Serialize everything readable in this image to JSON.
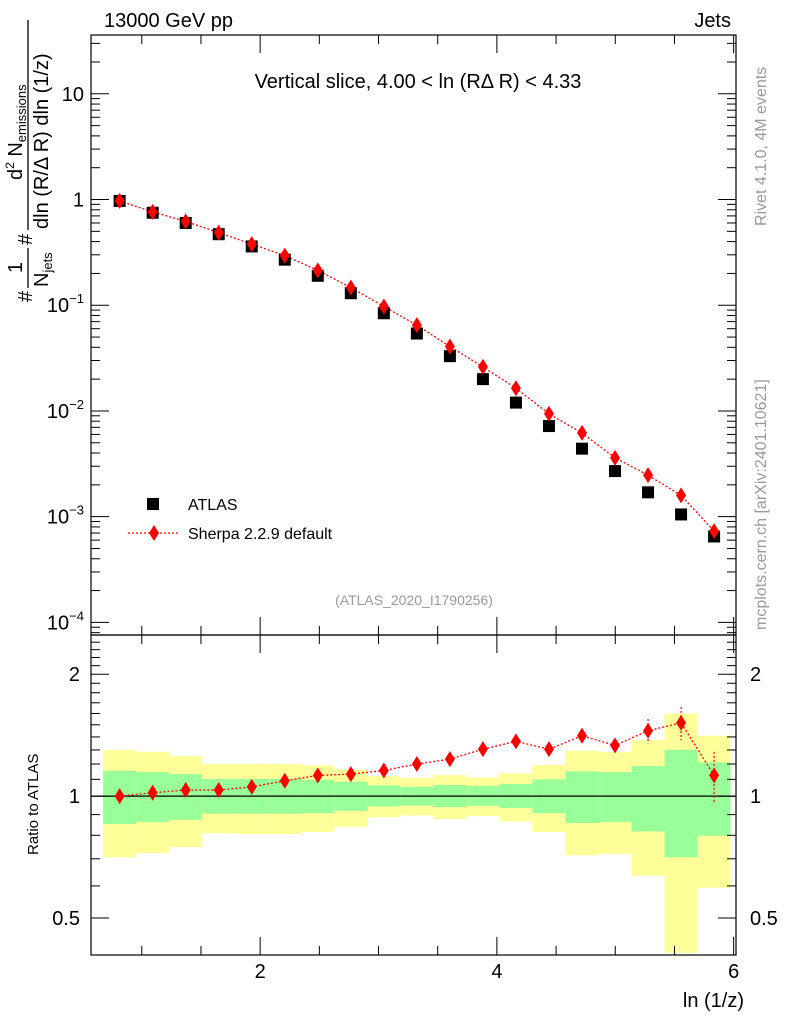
{
  "header": {
    "energy_label": "13000 GeV pp",
    "category_label": "Jets"
  },
  "side": {
    "rivet_label": "Rivet 4.1.0,  4M events",
    "mcplots_label": "mcplots.cern.ch [arXiv:2401.10621]"
  },
  "colors": {
    "data": "#000000",
    "mc": "#ff0000",
    "band_inner": "#99ff99",
    "band_outer": "#ffff99"
  },
  "chart_data": [
    {
      "type": "scatter",
      "panel": "main",
      "title": "Vertical slice, 4.00 < ln (RΔ R) < 4.33",
      "analysis_label": "(ATLAS_2020_I1790256)",
      "ylabel": {
        "f1_num": "1",
        "f1_den_hash": "#",
        "f1_den": "N",
        "f1_den_sub": "jets",
        "f2_num_d": "d",
        "f2_num_sup": "2",
        "f2_num_N": " N",
        "f2_num_sub": "emissions",
        "f2_den_hash": "#",
        "f2_den": "dln (R/Δ R) dln (1/z)",
        "hash": "#"
      },
      "yscale": "log",
      "ylim": [
        7.6e-05,
        36
      ],
      "xlim": [
        0.571,
        6.02
      ],
      "ytick_labels": [
        {
          "base": "10",
          "exp": "−4",
          "value": 0.0001
        },
        {
          "base": "10",
          "exp": "−3",
          "value": 0.001
        },
        {
          "base": "10",
          "exp": "−2",
          "value": 0.01
        },
        {
          "base": "10",
          "exp": "−1",
          "value": 0.1
        },
        {
          "base": "1",
          "exp": "",
          "value": 1
        },
        {
          "base": "10",
          "exp": "",
          "value": 10
        }
      ],
      "legend": {
        "placement": "bottom-left",
        "entries": [
          "ATLAS",
          "Sherpa 2.2.9 default"
        ]
      },
      "x": [
        0.813,
        1.092,
        1.371,
        1.65,
        1.929,
        2.208,
        2.487,
        2.766,
        3.045,
        3.324,
        3.603,
        3.882,
        4.161,
        4.44,
        4.719,
        4.998,
        5.277,
        5.556,
        5.835
      ],
      "series": [
        {
          "name": "ATLAS",
          "values": [
            0.97,
            0.75,
            0.6,
            0.47,
            0.36,
            0.27,
            0.19,
            0.13,
            0.084,
            0.054,
            0.033,
            0.02,
            0.012,
            0.0072,
            0.0044,
            0.0027,
            0.0017,
            0.00105,
            0.00065
          ]
        },
        {
          "name": "Sherpa 2.2.9 default",
          "values": [
            0.97,
            0.764,
            0.621,
            0.486,
            0.379,
            0.295,
            0.214,
            0.147,
            0.0972,
            0.0648,
            0.0407,
            0.0261,
            0.0164,
            0.0094,
            0.0062,
            0.0036,
            0.00247,
            0.00159,
            0.00073
          ]
        }
      ]
    },
    {
      "type": "scatter",
      "panel": "ratio",
      "ylabel": "Ratio to ATLAS",
      "xlabel": "ln (1/z)",
      "yscale": "log",
      "ylim": [
        0.405,
        2.5
      ],
      "xlim": [
        0.571,
        6.02
      ],
      "xtick_labels": [
        "2",
        "4",
        "6"
      ],
      "xtick_values": [
        2,
        4,
        6
      ],
      "ytick_labels": [
        "0.5",
        "1",
        "2"
      ],
      "ytick_values": [
        0.5,
        1,
        2
      ],
      "bin_edges": [
        0.673,
        0.952,
        1.231,
        1.51,
        1.789,
        2.068,
        2.347,
        2.626,
        2.905,
        3.184,
        3.463,
        3.742,
        4.021,
        4.3,
        4.579,
        4.858,
        5.137,
        5.416,
        5.695,
        5.974
      ],
      "band_outer": {
        "upper": [
          1.301,
          1.287,
          1.255,
          1.2,
          1.2,
          1.2,
          1.19,
          1.164,
          1.12,
          1.108,
          1.127,
          1.112,
          1.137,
          1.193,
          1.294,
          1.287,
          1.375,
          1.6,
          1.41
        ],
        "lower": [
          0.706,
          0.723,
          0.748,
          0.809,
          0.806,
          0.806,
          0.815,
          0.84,
          0.886,
          0.896,
          0.877,
          0.893,
          0.866,
          0.815,
          0.714,
          0.72,
          0.636,
          0.41,
          0.594
        ]
      },
      "band_inner": {
        "upper": [
          1.155,
          1.146,
          1.133,
          1.102,
          1.102,
          1.102,
          1.097,
          1.085,
          1.063,
          1.054,
          1.065,
          1.059,
          1.071,
          1.1,
          1.151,
          1.146,
          1.186,
          1.301,
          1.211
        ],
        "lower": [
          0.853,
          0.863,
          0.874,
          0.905,
          0.905,
          0.905,
          0.908,
          0.92,
          0.943,
          0.948,
          0.939,
          0.946,
          0.934,
          0.908,
          0.858,
          0.863,
          0.818,
          0.706,
          0.798
        ]
      },
      "series": [
        {
          "name": "Sherpa 2.2.9 default",
          "values": [
            1.0,
            1.019,
            1.035,
            1.035,
            1.054,
            1.091,
            1.125,
            1.133,
            1.157,
            1.2,
            1.234,
            1.306,
            1.365,
            1.306,
            1.409,
            1.334,
            1.45,
            1.517,
            1.125
          ],
          "err_up": [
            1.01,
            1.03,
            1.045,
            1.045,
            1.065,
            1.1,
            1.135,
            1.145,
            1.17,
            1.215,
            1.25,
            1.325,
            1.39,
            1.335,
            1.47,
            1.38,
            1.55,
            1.66,
            1.286
          ],
          "err_down": [
            0.99,
            1.008,
            1.025,
            1.025,
            1.043,
            1.08,
            1.115,
            1.12,
            1.145,
            1.185,
            1.218,
            1.287,
            1.34,
            1.275,
            1.35,
            1.29,
            1.35,
            1.375,
            0.965
          ]
        }
      ]
    }
  ]
}
